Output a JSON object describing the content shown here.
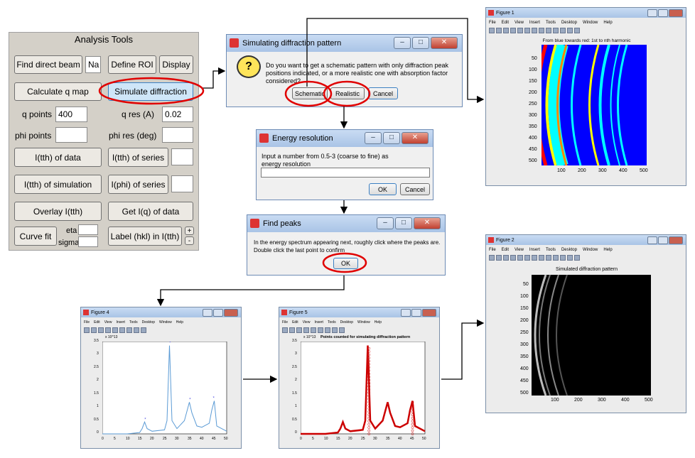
{
  "analysis_tools": {
    "title": "Analysis Tools",
    "find_direct_beam": "Find direct beam",
    "find_direct_beam_value": "Na",
    "define_roi": "Define ROI",
    "display": "Display",
    "calculate_q_map": "Calculate q map",
    "simulate_diffraction": "Simulate diffraction",
    "q_points_label": "q points",
    "q_points_value": "400",
    "q_res_label": "q res (A)",
    "q_res_value": "0.02",
    "phi_points_label": "phi points",
    "phi_points_value": "",
    "phi_res_label": "phi res (deg)",
    "phi_res_value": "",
    "i_tth_data": "I(tth) of data",
    "i_tth_series": "I(tth) of series",
    "i_tth_simulation": "I(tth) of simulation",
    "i_phi_series": "I(phi) of series",
    "overlay": "Overlay I(tth)",
    "get_iq": "Get I(q) of data",
    "curve_fit": "Curve fit",
    "eta_label": "eta",
    "sigma_label": "sigma",
    "label_hkl": "Label (hkl) in I(tth)",
    "plus": "+",
    "minus": "-"
  },
  "dialog_sim": {
    "title": "Simulating diffraction pattern",
    "text1": "Do you want to get a schematic pattern with only diffraction peak",
    "text2": "positions indicated, or a more realistic one with absorption factor",
    "text3": "considered?",
    "schematic": "Schematic",
    "realistic": "Realistic",
    "cancel": "Cancel"
  },
  "dialog_energy": {
    "title": "Energy resolution",
    "text1": "Input a number from 0.5-3 (coarse to fine) as",
    "text2": "energy resolution",
    "value": "",
    "ok": "OK",
    "cancel": "Cancel"
  },
  "dialog_peaks": {
    "title": "Find peaks",
    "text1": "In the energy spectrum appearing next, roughly click where the peaks are.",
    "text2": "Double click the last point to confirm",
    "ok": "OK"
  },
  "menu": [
    "File",
    "Edit",
    "View",
    "Insert",
    "Tools",
    "Desktop",
    "Window",
    "Help"
  ],
  "figure1": {
    "window_title": "Figure 1",
    "plot_title": "From blue towards red: 1st to nth harmonic",
    "yticks": [
      "50",
      "100",
      "150",
      "200",
      "250",
      "300",
      "350",
      "400",
      "450",
      "500"
    ],
    "xticks": [
      "100",
      "200",
      "300",
      "400",
      "500"
    ]
  },
  "figure2": {
    "window_title": "Figure 2",
    "plot_title": "Simulated diffraction pattern",
    "yticks": [
      "50",
      "100",
      "150",
      "200",
      "250",
      "300",
      "350",
      "400",
      "450",
      "500"
    ],
    "xticks": [
      "100",
      "200",
      "300",
      "400",
      "500"
    ]
  },
  "figure4": {
    "window_title": "Figure 4",
    "exponent": "x 10^13",
    "yticks": [
      "0",
      "0.5",
      "1",
      "1.5",
      "2",
      "2.5",
      "3",
      "3.5"
    ],
    "xticks": [
      "0",
      "5",
      "10",
      "15",
      "20",
      "25",
      "30",
      "35",
      "40",
      "45",
      "50"
    ]
  },
  "figure5": {
    "window_title": "Figure 5",
    "plot_title": "Points counted for simulating diffraction pattern",
    "exponent": "x 10^13",
    "yticks": [
      "0",
      "0.5",
      "1",
      "1.5",
      "2",
      "2.5",
      "3",
      "3.5"
    ],
    "xticks": [
      "0",
      "5",
      "10",
      "15",
      "20",
      "25",
      "30",
      "35",
      "40",
      "45",
      "50"
    ]
  },
  "chart_data": [
    {
      "type": "line",
      "name_ref": "figure4",
      "x": [
        0,
        5,
        10,
        15,
        16,
        17,
        18,
        20,
        25,
        26,
        27,
        28,
        30,
        33,
        35,
        36,
        38,
        40,
        43,
        44,
        45,
        46,
        50
      ],
      "y": [
        0.0,
        0.0,
        0.0,
        0.05,
        0.2,
        0.45,
        0.2,
        0.1,
        0.15,
        0.5,
        3.35,
        0.5,
        0.2,
        0.5,
        1.2,
        0.8,
        0.3,
        0.25,
        0.4,
        0.9,
        1.25,
        0.3,
        0.1
      ],
      "peaks_x": [
        17.5,
        27.5,
        35.5,
        45
      ],
      "peaks_y": [
        0.45,
        3.35,
        1.2,
        1.25
      ],
      "xlim": [
        0,
        50
      ],
      "ylim": [
        0,
        3.5
      ]
    }
  ],
  "colors": {
    "highlight": "#e00000",
    "panel": "#d4d0c8",
    "plot_line": "#5b9bd5",
    "peak_mark": "#4a4ae0",
    "red_line": "#cc0000"
  }
}
